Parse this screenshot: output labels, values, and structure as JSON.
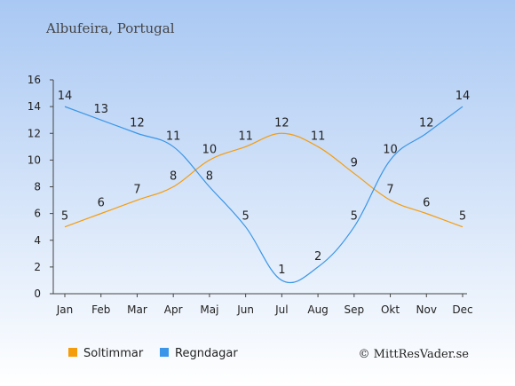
{
  "chart_data": {
    "type": "line",
    "title": "Albufeira, Portugal",
    "categories": [
      "Jan",
      "Feb",
      "Mar",
      "Apr",
      "Maj",
      "Jun",
      "Jul",
      "Aug",
      "Sep",
      "Okt",
      "Nov",
      "Dec"
    ],
    "series": [
      {
        "name": "Soltimmar",
        "color": "#f59c0b",
        "values": [
          5,
          6,
          7,
          8,
          10,
          11,
          12,
          11,
          9,
          7,
          6,
          5
        ]
      },
      {
        "name": "Regndagar",
        "color": "#3a96e8",
        "values": [
          14,
          13,
          12,
          11,
          8,
          5,
          1,
          2,
          5,
          10,
          12,
          14
        ]
      }
    ],
    "ylim": [
      0,
      16
    ],
    "yticks": [
      0,
      2,
      4,
      6,
      8,
      10,
      12,
      14,
      16
    ],
    "grid": false,
    "legend_position": "bottom-left",
    "credit": "© MittResVader.se"
  }
}
